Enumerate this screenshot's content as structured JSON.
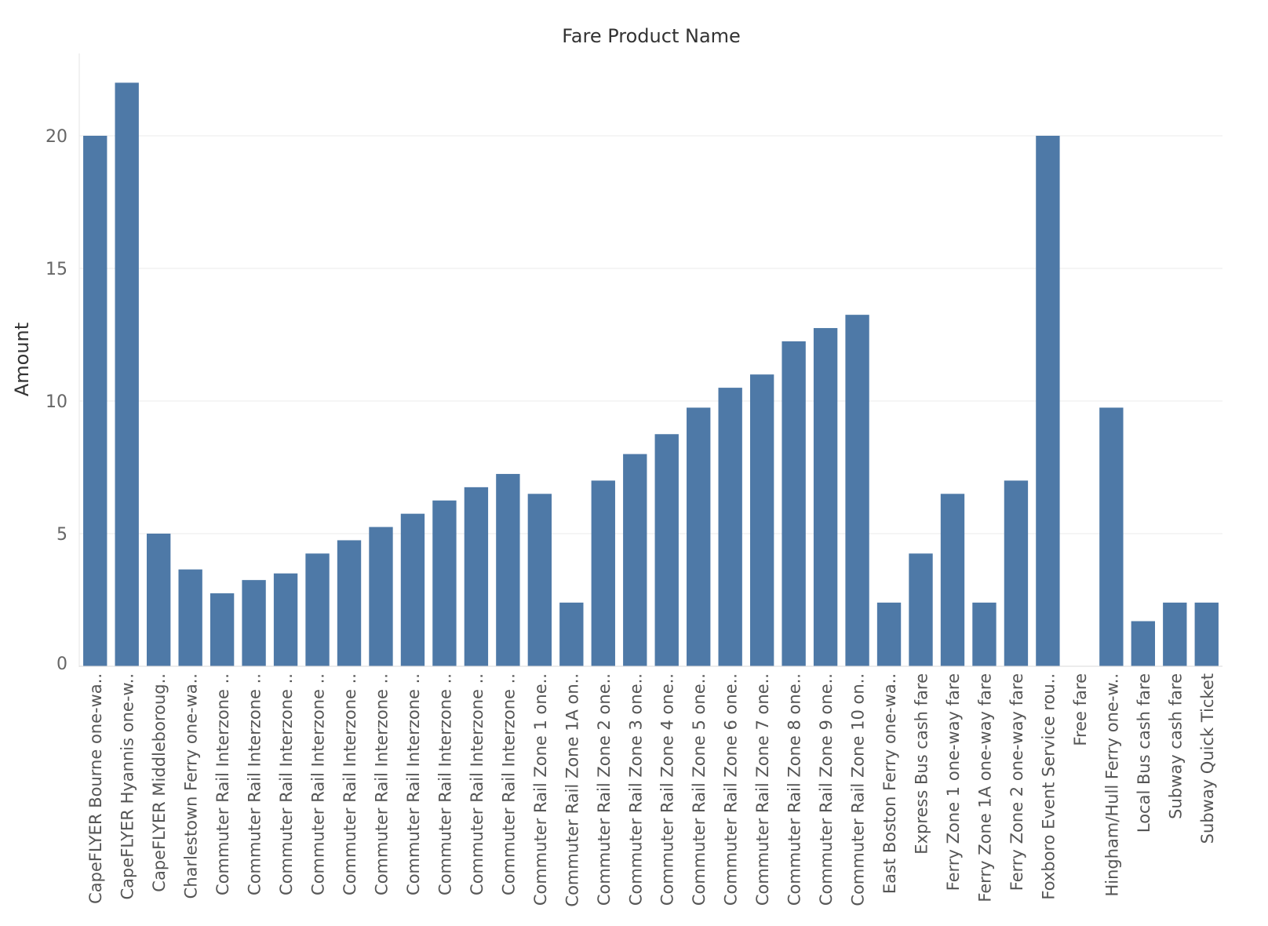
{
  "chart_data": {
    "type": "bar",
    "title": "Fare Product Name",
    "ylabel": "Amount",
    "xlabel": "",
    "ylim": [
      0,
      23
    ],
    "yticks": [
      0,
      5,
      10,
      15,
      20
    ],
    "grid": true,
    "bar_color": "#4e79a7",
    "categories": [
      "CapeFLYER Bourne one-wa..",
      "CapeFLYER Hyannis one-w..",
      "CapeFLYER Middleboroug..",
      "Charlestown Ferry one-wa..",
      "Commuter Rail Interzone ..",
      "Commuter Rail Interzone ..",
      "Commuter Rail Interzone ..",
      "Commuter Rail Interzone ..",
      "Commuter Rail Interzone ..",
      "Commuter Rail Interzone ..",
      "Commuter Rail Interzone ..",
      "Commuter Rail Interzone ..",
      "Commuter Rail Interzone ..",
      "Commuter Rail Interzone ..",
      "Commuter Rail Zone 1 one..",
      "Commuter Rail Zone 1A on..",
      "Commuter Rail Zone 2 one..",
      "Commuter Rail Zone 3 one..",
      "Commuter Rail Zone 4 one..",
      "Commuter Rail Zone 5 one..",
      "Commuter Rail Zone 6 one..",
      "Commuter Rail Zone 7 one..",
      "Commuter Rail Zone 8 one..",
      "Commuter Rail Zone 9 one..",
      "Commuter Rail Zone 10 on..",
      "East Boston Ferry one-wa..",
      "Express Bus cash fare",
      "Ferry Zone 1 one-way fare",
      "Ferry Zone 1A one-way fare",
      "Ferry Zone 2 one-way fare",
      "Foxboro Event Service rou..",
      "Free fare",
      "Hingham/Hull Ferry one-w..",
      "Local Bus cash fare",
      "Subway cash fare",
      "Subway Quick Ticket"
    ],
    "values": [
      20,
      22,
      5,
      3.65,
      2.75,
      3.25,
      3.5,
      4.25,
      4.75,
      5.25,
      5.75,
      6.25,
      6.75,
      7.25,
      6.5,
      2.4,
      7,
      8,
      8.75,
      9.75,
      10.5,
      11,
      12.25,
      12.75,
      13.25,
      2.4,
      4.25,
      6.5,
      2.4,
      7,
      20,
      0,
      9.75,
      1.7,
      2.4,
      2.4
    ]
  }
}
